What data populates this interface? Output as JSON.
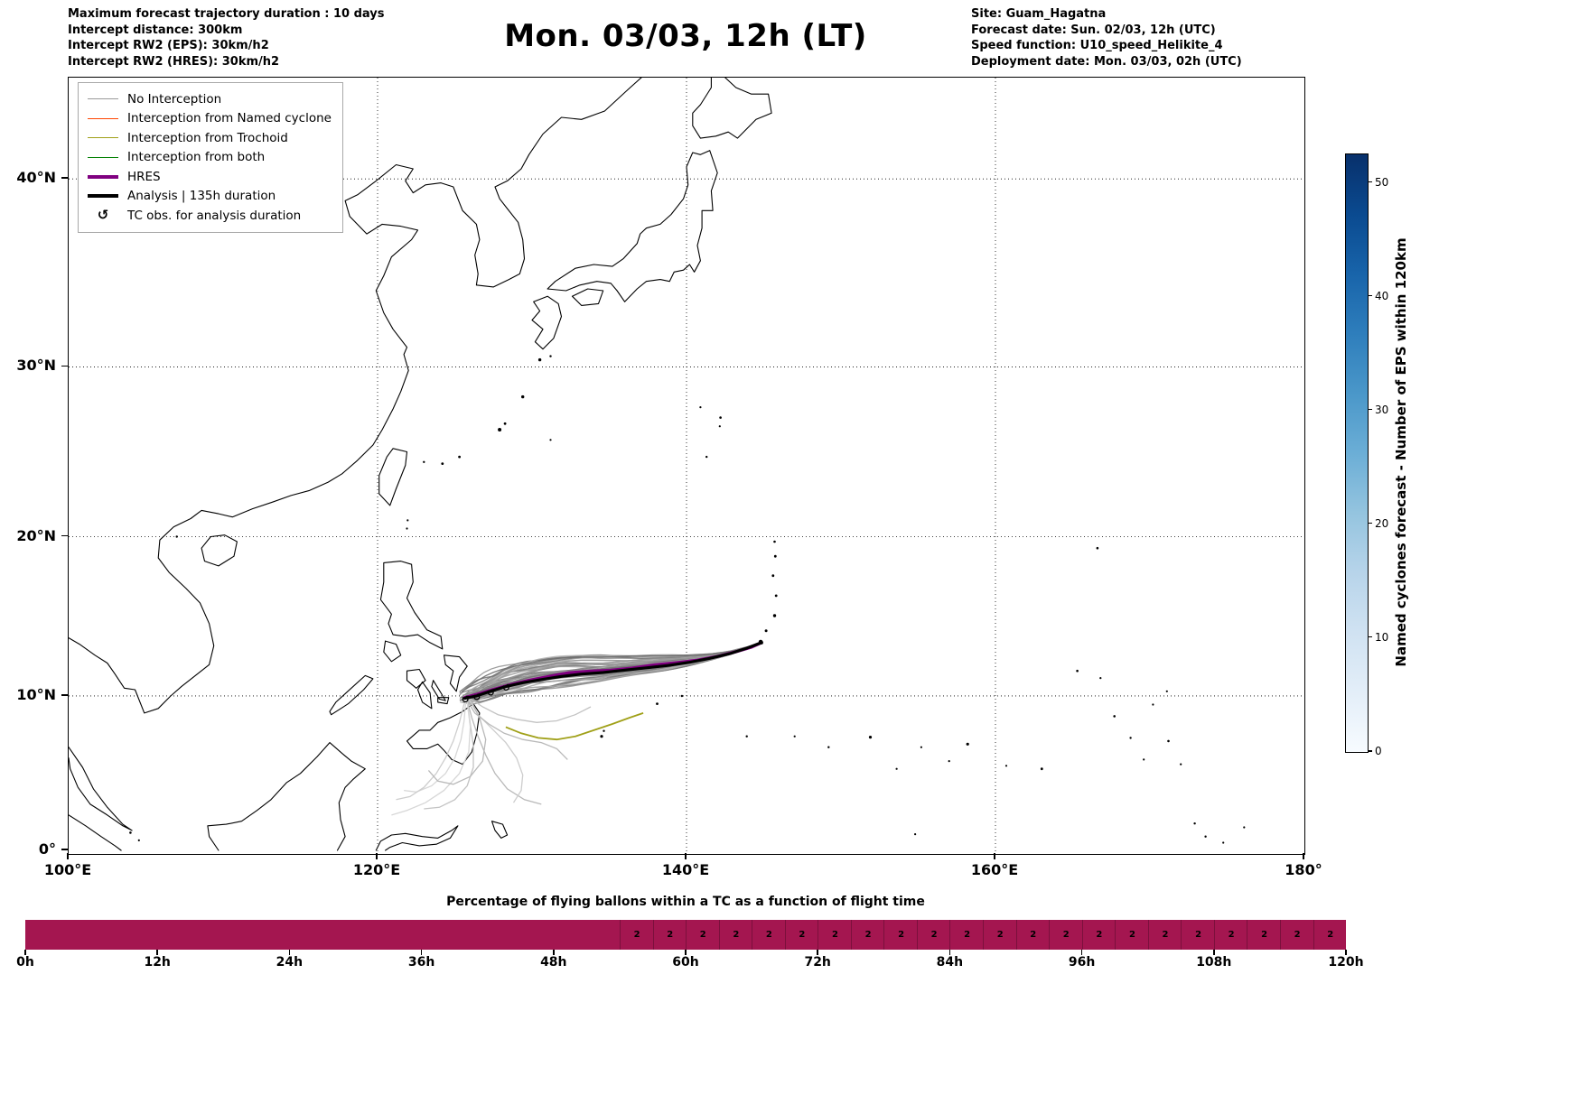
{
  "header": {
    "left_lines": [
      "Maximum forecast trajectory duration : 10 days",
      "Intercept distance: 300km",
      "Intercept RW2 (EPS):  30km/h2",
      "Intercept RW2 (HRES): 30km/h2"
    ],
    "title": "Mon. 03/03, 12h (LT)",
    "right_lines": [
      "Site: Guam_Hagatna",
      "Forecast date: Sun. 02/03, 12h (UTC)",
      "Speed function: U10_speed_Helikite_4",
      "Deployment date: Mon. 03/03, 02h (UTC)"
    ]
  },
  "map": {
    "x_ticks": [
      {
        "label": "100°E",
        "lon": 100
      },
      {
        "label": "120°E",
        "lon": 120
      },
      {
        "label": "140°E",
        "lon": 140
      },
      {
        "label": "160°E",
        "lon": 160
      },
      {
        "label": "180°",
        "lon": 180
      }
    ],
    "y_ticks": [
      {
        "label": "0°",
        "lat": 0
      },
      {
        "label": "10°N",
        "lat": 10
      },
      {
        "label": "20°N",
        "lat": 20
      },
      {
        "label": "30°N",
        "lat": 30
      },
      {
        "label": "40°N",
        "lat": 40
      }
    ],
    "legend": [
      {
        "label": "No Interception",
        "color": "#999999",
        "width": 1.5,
        "type": "line"
      },
      {
        "label": "Interception from Named cyclone",
        "color": "#ff4500",
        "width": 1.5,
        "type": "line"
      },
      {
        "label": "Interception from Trochoid",
        "color": "#a0a018",
        "width": 1.5,
        "type": "line"
      },
      {
        "label": "Interception from both",
        "color": "#008000",
        "width": 1.5,
        "type": "line"
      },
      {
        "label": "HRES",
        "color": "#800080",
        "width": 4,
        "type": "line"
      },
      {
        "label": "Analysis | 135h duration",
        "color": "#000000",
        "width": 4,
        "type": "line"
      },
      {
        "label": "TC obs. for analysis duration",
        "color": "#000000",
        "type": "marker",
        "marker": "↺"
      }
    ]
  },
  "colorbar": {
    "label": "Named cyclones forecast - Number of EPS within 120km",
    "ticks": [
      0,
      10,
      20,
      30,
      40,
      50
    ],
    "vmin": 0,
    "vmax": 52.5,
    "gradient_bottom_to_top": [
      "#f7fbff",
      "#e3eef8",
      "#d0e2f2",
      "#b7d4ea",
      "#94c4df",
      "#6baed6",
      "#4a97c9",
      "#2e7ebc",
      "#1864aa",
      "#0a4a90",
      "#08306b"
    ]
  },
  "chart_data": {
    "trajectory_map": {
      "type": "trajectory-map",
      "projection": "mercator",
      "lon_range": [
        100,
        180
      ],
      "lat_range": [
        0,
        46
      ],
      "grid_lon": [
        120,
        140,
        160
      ],
      "grid_lat": [
        10,
        20,
        30,
        40
      ],
      "site_name": "Guam_Hagatna",
      "site_lonlat": [
        144.85,
        13.4
      ],
      "analysis_track": [
        [
          125.65,
          9.85
        ],
        [
          126.4,
          10.0
        ],
        [
          127.3,
          10.3
        ],
        [
          128.3,
          10.6
        ],
        [
          129.4,
          10.85
        ],
        [
          130.6,
          11.05
        ],
        [
          131.9,
          11.25
        ],
        [
          133.2,
          11.4
        ],
        [
          134.6,
          11.5
        ],
        [
          136.0,
          11.65
        ],
        [
          137.4,
          11.8
        ],
        [
          138.8,
          11.95
        ],
        [
          140.2,
          12.15
        ],
        [
          141.5,
          12.4
        ],
        [
          142.8,
          12.7
        ],
        [
          143.9,
          13.05
        ],
        [
          144.85,
          13.4
        ]
      ],
      "hres_track": [
        [
          125.65,
          9.9
        ],
        [
          126.5,
          10.12
        ],
        [
          127.5,
          10.42
        ],
        [
          128.6,
          10.72
        ],
        [
          129.8,
          11.0
        ],
        [
          131.1,
          11.25
        ],
        [
          132.4,
          11.48
        ],
        [
          133.7,
          11.58
        ],
        [
          135.1,
          11.64
        ],
        [
          136.5,
          11.78
        ],
        [
          137.9,
          11.98
        ],
        [
          139.3,
          12.12
        ],
        [
          140.7,
          12.28
        ],
        [
          142.0,
          12.52
        ],
        [
          143.2,
          12.82
        ],
        [
          144.2,
          13.12
        ],
        [
          144.85,
          13.4
        ]
      ],
      "trochoid_track": [
        [
          128.3,
          8.0
        ],
        [
          129.3,
          7.6
        ],
        [
          130.4,
          7.3
        ],
        [
          131.6,
          7.2
        ],
        [
          132.8,
          7.4
        ],
        [
          134.0,
          7.8
        ],
        [
          135.2,
          8.2
        ],
        [
          136.3,
          8.6
        ],
        [
          137.2,
          8.9
        ]
      ],
      "ensemble": {
        "count": 38,
        "seed": 7,
        "spread_north": 2.6,
        "spread_south": 1.3,
        "color_dark": "#787878",
        "color_light": "#b4b4b4"
      },
      "south_tracks": [
        [
          [
            125.8,
            9.7
          ],
          [
            126.1,
            8.6
          ],
          [
            126.5,
            7.4
          ],
          [
            127.0,
            6.2
          ],
          [
            127.6,
            5.0
          ],
          [
            128.4,
            4.0
          ],
          [
            129.5,
            3.3
          ],
          [
            130.6,
            3.0
          ]
        ],
        [
          [
            125.8,
            9.7
          ],
          [
            126.0,
            8.2
          ],
          [
            126.2,
            6.8
          ],
          [
            126.2,
            5.4
          ],
          [
            125.8,
            4.2
          ],
          [
            125.0,
            3.3
          ],
          [
            124.0,
            2.8
          ],
          [
            123.0,
            2.7
          ]
        ],
        [
          [
            125.9,
            9.8
          ],
          [
            126.5,
            8.8
          ],
          [
            127.4,
            7.9
          ],
          [
            128.3,
            7.0
          ],
          [
            129.0,
            6.0
          ],
          [
            129.4,
            4.9
          ],
          [
            129.3,
            3.9
          ],
          [
            128.8,
            3.1
          ]
        ],
        [
          [
            125.7,
            9.6
          ],
          [
            125.6,
            8.4
          ],
          [
            125.4,
            7.2
          ],
          [
            125.0,
            6.0
          ],
          [
            124.4,
            5.0
          ],
          [
            123.5,
            4.2
          ],
          [
            122.5,
            3.8
          ],
          [
            121.7,
            3.9
          ]
        ],
        [
          [
            125.8,
            9.7
          ],
          [
            126.3,
            8.9
          ],
          [
            127.2,
            8.2
          ],
          [
            128.2,
            7.6
          ],
          [
            129.4,
            7.2
          ],
          [
            130.6,
            7.0
          ],
          [
            131.6,
            6.6
          ],
          [
            132.3,
            5.9
          ]
        ],
        [
          [
            125.9,
            9.9
          ],
          [
            126.8,
            9.3
          ],
          [
            127.8,
            8.8
          ],
          [
            129.0,
            8.5
          ],
          [
            130.3,
            8.3
          ],
          [
            131.6,
            8.4
          ],
          [
            132.8,
            8.8
          ],
          [
            133.8,
            9.3
          ]
        ],
        [
          [
            125.6,
            9.5
          ],
          [
            125.3,
            8.3
          ],
          [
            124.9,
            7.1
          ],
          [
            124.4,
            6.0
          ],
          [
            123.8,
            5.0
          ],
          [
            123.0,
            4.1
          ],
          [
            122.1,
            3.5
          ],
          [
            121.2,
            3.3
          ]
        ],
        [
          [
            125.8,
            9.6
          ],
          [
            126.0,
            8.0
          ],
          [
            125.9,
            6.4
          ],
          [
            125.3,
            5.0
          ],
          [
            124.3,
            3.9
          ],
          [
            123.1,
            3.1
          ],
          [
            121.9,
            2.6
          ],
          [
            120.9,
            2.3
          ]
        ],
        [
          [
            126.0,
            9.8
          ],
          [
            126.6,
            8.6
          ],
          [
            127.0,
            7.2
          ],
          [
            126.8,
            5.8
          ],
          [
            126.0,
            4.8
          ],
          [
            124.9,
            4.3
          ],
          [
            123.9,
            4.5
          ],
          [
            123.3,
            5.2
          ]
        ]
      ]
    },
    "tc_percentage_bar": {
      "type": "bar",
      "title": "Percentage of flying ballons within a TC as a function of flight time",
      "x_ticks": [
        "0h",
        "12h",
        "24h",
        "36h",
        "48h",
        "60h",
        "72h",
        "84h",
        "96h",
        "108h",
        "120h"
      ],
      "total_hours": 120,
      "bar_color": "#a41650",
      "unlabeled_segment": {
        "from_hour": 0,
        "to_hour": 54
      },
      "labeled_segments": {
        "from_hour": 54,
        "to_hour": 120,
        "step_hours": 3,
        "value": "2"
      }
    }
  }
}
